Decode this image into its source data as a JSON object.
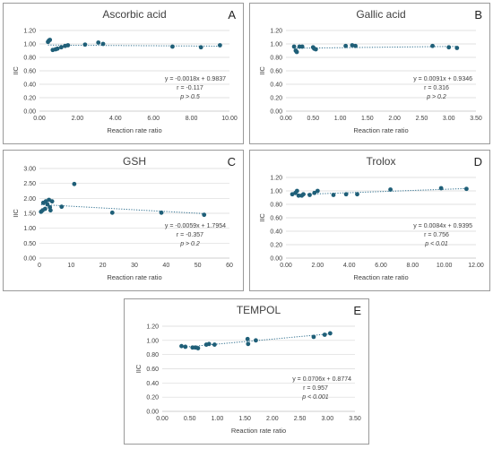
{
  "chart_data": [
    {
      "type": "scatter",
      "title": "Ascorbic acid",
      "panel_letter": "A",
      "xlabel": "Reaction rate ratio",
      "ylabel": "IIC",
      "xlim": [
        0,
        10
      ],
      "ylim": [
        0,
        1.2
      ],
      "xticks": [
        0,
        2,
        4,
        6,
        8,
        10
      ],
      "xtick_labels": [
        "0.00",
        "2.00",
        "4.00",
        "6.00",
        "8.00",
        "10.00"
      ],
      "yticks": [
        0,
        0.2,
        0.4,
        0.6,
        0.8,
        1.0,
        1.2
      ],
      "ytick_labels": [
        "0.00",
        "0.20",
        "0.40",
        "0.60",
        "0.80",
        "1.00",
        "1.20"
      ],
      "points": [
        [
          0.45,
          1.03
        ],
        [
          0.5,
          1.05
        ],
        [
          0.55,
          1.06
        ],
        [
          0.7,
          0.91
        ],
        [
          0.85,
          0.92
        ],
        [
          0.95,
          0.93
        ],
        [
          1.15,
          0.95
        ],
        [
          1.35,
          0.97
        ],
        [
          1.5,
          0.98
        ],
        [
          2.4,
          0.99
        ],
        [
          3.1,
          1.02
        ],
        [
          3.35,
          1.0
        ],
        [
          7.0,
          0.96
        ],
        [
          8.5,
          0.95
        ],
        [
          9.5,
          0.98
        ]
      ],
      "trendline": {
        "slope": -0.0018,
        "intercept": 0.9837
      },
      "annotations": [
        "y = -0.0018x + 0.9837",
        "r = -0.117",
        "p > 0.5"
      ]
    },
    {
      "type": "scatter",
      "title": "Gallic acid",
      "panel_letter": "B",
      "xlabel": "Reaction rate ratio",
      "ylabel": "IIC",
      "xlim": [
        0,
        3.5
      ],
      "ylim": [
        0,
        1.2
      ],
      "xticks": [
        0,
        0.5,
        1,
        1.5,
        2,
        2.5,
        3,
        3.5
      ],
      "xtick_labels": [
        "0.00",
        "0.50",
        "1.00",
        "1.50",
        "2.00",
        "2.50",
        "3.00",
        "3.50"
      ],
      "yticks": [
        0,
        0.2,
        0.4,
        0.6,
        0.8,
        1.0,
        1.2
      ],
      "ytick_labels": [
        "0.00",
        "0.20",
        "0.40",
        "0.60",
        "0.80",
        "1.00",
        "1.20"
      ],
      "points": [
        [
          0.15,
          0.96
        ],
        [
          0.18,
          0.9
        ],
        [
          0.2,
          0.88
        ],
        [
          0.25,
          0.96
        ],
        [
          0.3,
          0.96
        ],
        [
          0.5,
          0.95
        ],
        [
          0.52,
          0.93
        ],
        [
          0.55,
          0.92
        ],
        [
          1.1,
          0.97
        ],
        [
          1.22,
          0.98
        ],
        [
          1.28,
          0.97
        ],
        [
          2.7,
          0.97
        ],
        [
          3.0,
          0.95
        ],
        [
          3.15,
          0.94
        ]
      ],
      "trendline": {
        "slope": 0.0091,
        "intercept": 0.9346
      },
      "annotations": [
        "y = 0.0091x + 0.9346",
        "r = 0.316",
        "p > 0.2"
      ]
    },
    {
      "type": "scatter",
      "title": "GSH",
      "panel_letter": "C",
      "xlabel": "Reaction rate ratio",
      "ylabel": "IIC",
      "xlim": [
        0,
        60
      ],
      "ylim": [
        0,
        3
      ],
      "xticks": [
        0,
        10,
        20,
        30,
        40,
        50,
        60
      ],
      "xtick_labels": [
        "0",
        "10",
        "20",
        "30",
        "40",
        "50",
        "60"
      ],
      "yticks": [
        0,
        0.5,
        1,
        1.5,
        2,
        2.5,
        3
      ],
      "ytick_labels": [
        "0.00",
        "0.50",
        "1.00",
        "1.50",
        "2.00",
        "2.50",
        "3.00"
      ],
      "points": [
        [
          0.5,
          1.55
        ],
        [
          1.0,
          1.6
        ],
        [
          1.2,
          1.85
        ],
        [
          1.8,
          1.65
        ],
        [
          2.0,
          1.9
        ],
        [
          2.5,
          1.8
        ],
        [
          3.0,
          1.95
        ],
        [
          3.3,
          1.7
        ],
        [
          3.5,
          1.6
        ],
        [
          4.0,
          1.9
        ],
        [
          7.0,
          1.72
        ],
        [
          11.0,
          2.48
        ],
        [
          23.0,
          1.52
        ],
        [
          38.5,
          1.52
        ],
        [
          52.0,
          1.45
        ]
      ],
      "trendline": {
        "slope": -0.0059,
        "intercept": 1.7954
      },
      "annotations": [
        "y = -0.0059x + 1.7954",
        "r = -0.357",
        "p > 0.2"
      ]
    },
    {
      "type": "scatter",
      "title": "Trolox",
      "panel_letter": "D",
      "xlabel": "Reaction rate ratio",
      "ylabel": "IIC",
      "xlim": [
        0,
        12
      ],
      "ylim": [
        0,
        1.2
      ],
      "xticks": [
        0,
        2,
        4,
        6,
        8,
        10,
        12
      ],
      "xtick_labels": [
        "0.00",
        "2.00",
        "4.00",
        "6.00",
        "8.00",
        "10.00",
        "12.00"
      ],
      "yticks": [
        0,
        0.2,
        0.4,
        0.6,
        0.8,
        1.0,
        1.2
      ],
      "ytick_labels": [
        "0.00",
        "0.20",
        "0.40",
        "0.60",
        "0.80",
        "1.00",
        "1.20"
      ],
      "points": [
        [
          0.4,
          0.95
        ],
        [
          0.6,
          0.97
        ],
        [
          0.7,
          1.0
        ],
        [
          0.8,
          0.93
        ],
        [
          1.0,
          0.93
        ],
        [
          1.1,
          0.95
        ],
        [
          1.5,
          0.94
        ],
        [
          1.8,
          0.97
        ],
        [
          2.0,
          1.0
        ],
        [
          3.0,
          0.94
        ],
        [
          3.8,
          0.95
        ],
        [
          4.5,
          0.95
        ],
        [
          6.6,
          1.02
        ],
        [
          9.8,
          1.04
        ],
        [
          11.4,
          1.03
        ]
      ],
      "trendline": {
        "slope": 0.0084,
        "intercept": 0.9395
      },
      "annotations": [
        "y = 0.0084x + 0.9395",
        "r = 0.756",
        "p < 0.01"
      ]
    },
    {
      "type": "scatter",
      "title": "TEMPOL",
      "panel_letter": "E",
      "xlabel": "Reaction rate ratio",
      "ylabel": "IIC",
      "xlim": [
        0,
        3.5
      ],
      "ylim": [
        0,
        1.2
      ],
      "xticks": [
        0,
        0.5,
        1,
        1.5,
        2,
        2.5,
        3,
        3.5
      ],
      "xtick_labels": [
        "0.00",
        "0.50",
        "1.00",
        "1.50",
        "2.00",
        "2.50",
        "3.00",
        "3.50"
      ],
      "yticks": [
        0,
        0.2,
        0.4,
        0.6,
        0.8,
        1.0,
        1.2
      ],
      "ytick_labels": [
        "0.00",
        "0.20",
        "0.40",
        "0.60",
        "0.80",
        "1.00",
        "1.20"
      ],
      "points": [
        [
          0.35,
          0.92
        ],
        [
          0.42,
          0.91
        ],
        [
          0.55,
          0.9
        ],
        [
          0.6,
          0.9
        ],
        [
          0.65,
          0.89
        ],
        [
          0.8,
          0.94
        ],
        [
          0.85,
          0.95
        ],
        [
          0.95,
          0.94
        ],
        [
          1.55,
          1.02
        ],
        [
          1.56,
          0.95
        ],
        [
          1.7,
          1.0
        ],
        [
          2.75,
          1.05
        ],
        [
          2.95,
          1.08
        ],
        [
          3.05,
          1.1
        ]
      ],
      "trendline": {
        "slope": 0.0706,
        "intercept": 0.8774
      },
      "annotations": [
        "y = 0.0706x + 0.8774",
        "r = 0.957",
        "p < 0.001"
      ]
    }
  ],
  "colors": {
    "marker": "#1f5f78",
    "trendline": "#2e6f8e",
    "grid": "#d9d9d9",
    "text": "#404040"
  }
}
